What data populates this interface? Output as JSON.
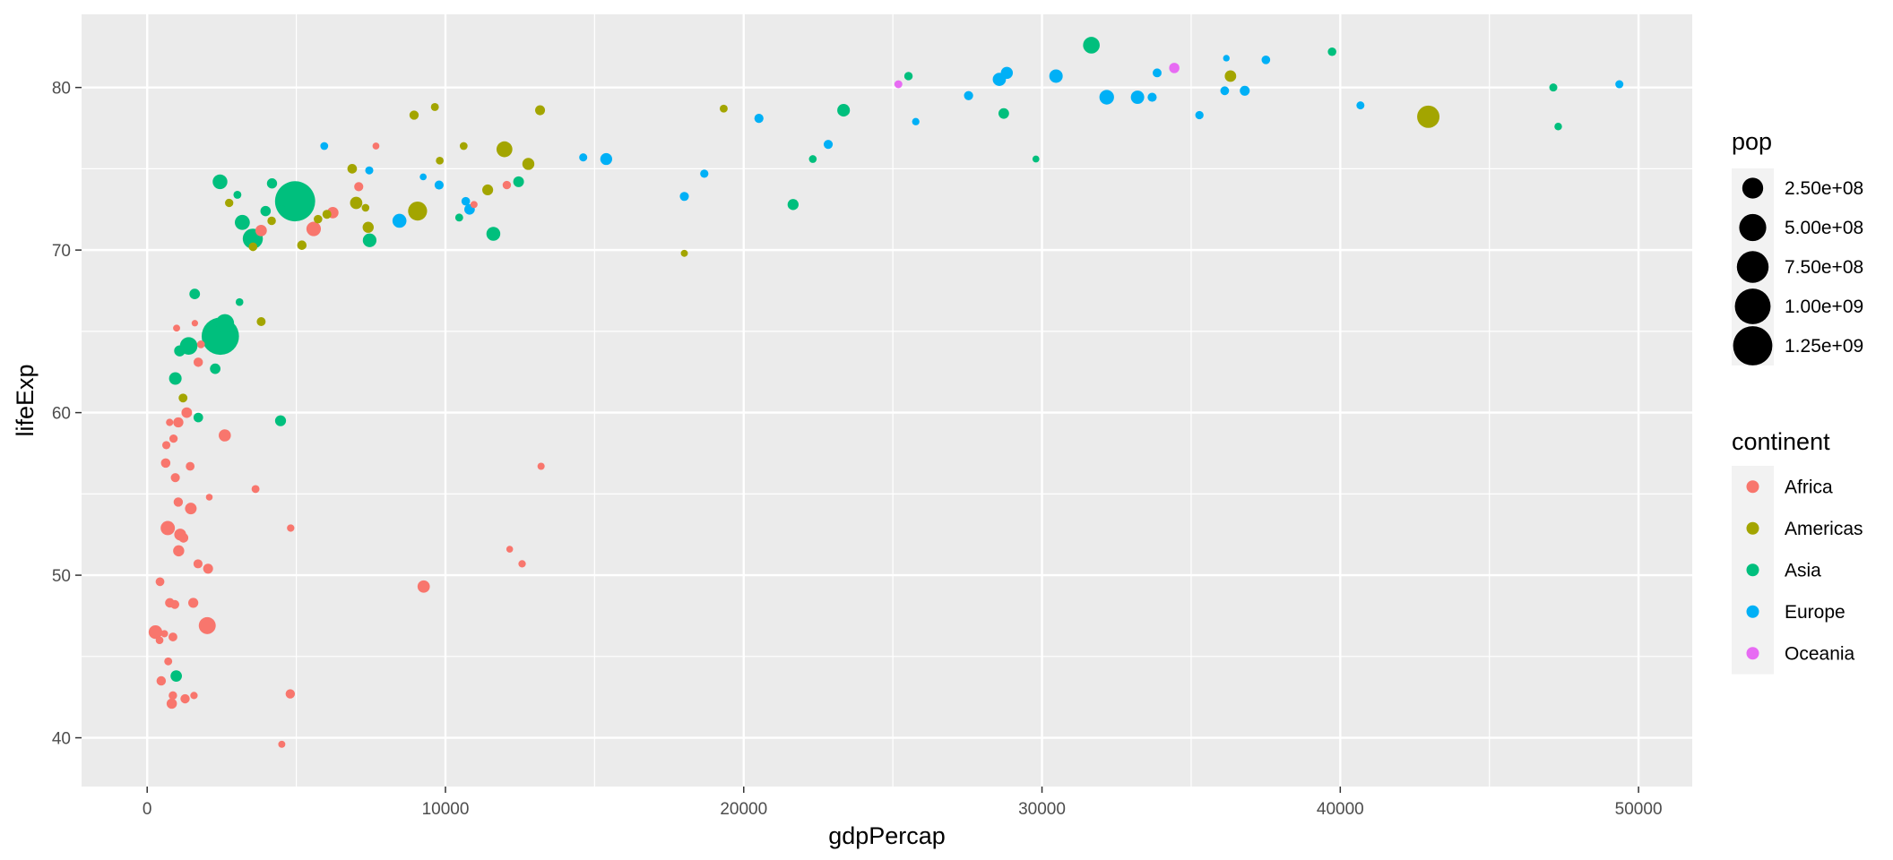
{
  "chart_data": {
    "type": "scatter",
    "xlabel": "gdpPercap",
    "ylabel": "lifeExp",
    "xlim": [
      -2200,
      51800
    ],
    "ylim": [
      37,
      84.5
    ],
    "x_ticks": [
      0,
      10000,
      20000,
      30000,
      40000,
      50000
    ],
    "x_tick_labels": [
      "0",
      "10000",
      "20000",
      "30000",
      "40000",
      "50000"
    ],
    "y_ticks": [
      40,
      50,
      60,
      70,
      80
    ],
    "y_tick_labels": [
      "40",
      "50",
      "60",
      "70",
      "80"
    ],
    "grid": true,
    "legend_position": "right",
    "size_legend": {
      "title": "pop",
      "entries": [
        {
          "label": "2.50e+08",
          "value": 250000000
        },
        {
          "label": "5.00e+08",
          "value": 500000000
        },
        {
          "label": "7.50e+08",
          "value": 750000000
        },
        {
          "label": "1.00e+09",
          "value": 1000000000
        },
        {
          "label": "1.25e+09",
          "value": 1250000000
        }
      ]
    },
    "color_legend": {
      "title": "continent",
      "entries": [
        {
          "label": "Africa",
          "color": "#F8766D"
        },
        {
          "label": "Americas",
          "color": "#A3A500"
        },
        {
          "label": "Asia",
          "color": "#00BF7D"
        },
        {
          "label": "Europe",
          "color": "#00B0F6"
        },
        {
          "label": "Oceania",
          "color": "#E76BF3"
        }
      ]
    },
    "series": [
      {
        "name": "Africa",
        "points": [
          [
            6223,
            72.3,
            33000000
          ],
          [
            4797,
            42.7,
            12000000
          ],
          [
            1441,
            56.7,
            8000000
          ],
          [
            12570,
            50.7,
            2000000
          ],
          [
            1217,
            52.3,
            14000000
          ],
          [
            430,
            49.6,
            8000000
          ],
          [
            2042,
            50.4,
            17000000
          ],
          [
            706,
            44.7,
            4000000
          ],
          [
            1704,
            50.7,
            10000000
          ],
          [
            986,
            65.2,
            1000000
          ],
          [
            278,
            46.5,
            65000000
          ],
          [
            3633,
            55.3,
            4000000
          ],
          [
            1545,
            48.3,
            18000000
          ],
          [
            2082,
            54.8,
            500000
          ],
          [
            5581,
            71.3,
            80000000
          ],
          [
            12154,
            51.6,
            550000
          ],
          [
            641,
            58.0,
            4900000
          ],
          [
            690,
            52.9,
            76000000
          ],
          [
            13206,
            56.7,
            1400000
          ],
          [
            753,
            59.4,
            1700000
          ],
          [
            1327,
            60.0,
            23000000
          ],
          [
            943,
            56.0,
            9900000
          ],
          [
            579,
            46.4,
            1500000
          ],
          [
            1463,
            54.1,
            35000000
          ],
          [
            1569,
            42.6,
            2000000
          ],
          [
            415,
            46.0,
            3200000
          ],
          [
            12057,
            74.0,
            6000000
          ],
          [
            1044,
            59.4,
            19000000
          ],
          [
            759,
            48.3,
            13000000
          ],
          [
            1042,
            54.5,
            12000000
          ],
          [
            1803,
            64.2,
            3300000
          ],
          [
            10957,
            72.8,
            1250000
          ],
          [
            3820,
            71.2,
            33000000
          ],
          [
            824,
            42.1,
            20000000
          ],
          [
            4811,
            52.9,
            2000000
          ],
          [
            620,
            56.9,
            12900000
          ],
          [
            2014,
            46.9,
            135000000
          ],
          [
            7670,
            76.4,
            800000
          ],
          [
            863,
            46.2,
            8900000
          ],
          [
            1598,
            65.5,
            200000
          ],
          [
            1712,
            63.1,
            12000000
          ],
          [
            862,
            42.6,
            6100000
          ],
          [
            926,
            48.2,
            9100000
          ],
          [
            9270,
            49.3,
            44000000
          ],
          [
            2602,
            58.6,
            42000000
          ],
          [
            4513,
            39.6,
            1100000
          ],
          [
            1107,
            52.5,
            38000000
          ],
          [
            883,
            58.4,
            5700000
          ],
          [
            7093,
            73.9,
            10300000
          ],
          [
            1056,
            51.5,
            29000000
          ],
          [
            1271,
            42.4,
            11700000
          ],
          [
            470,
            43.5,
            12300000
          ]
        ]
      },
      {
        "name": "Americas",
        "points": [
          [
            12779,
            75.3,
            40000000
          ],
          [
            3822,
            65.6,
            9100000
          ],
          [
            9066,
            72.4,
            190000000
          ],
          [
            36319,
            80.7,
            33000000
          ],
          [
            13172,
            78.6,
            16300000
          ],
          [
            7007,
            72.9,
            44000000
          ],
          [
            9645,
            78.8,
            4100000
          ],
          [
            8948,
            78.3,
            11400000
          ],
          [
            6025,
            72.2,
            9300000
          ],
          [
            6873,
            75.0,
            13800000
          ],
          [
            5728,
            71.9,
            6900000
          ],
          [
            5186,
            70.3,
            12600000
          ],
          [
            1202,
            60.9,
            8500000
          ],
          [
            3548,
            70.2,
            7500000
          ],
          [
            7321,
            72.6,
            2800000
          ],
          [
            11978,
            76.2,
            108700000
          ],
          [
            2749,
            72.9,
            5700000
          ],
          [
            9809,
            75.5,
            3200000
          ],
          [
            4173,
            71.8,
            6700000
          ],
          [
            7409,
            71.4,
            28700000
          ],
          [
            19329,
            78.7,
            3900000
          ],
          [
            18009,
            69.8,
            1100000
          ],
          [
            42952,
            78.2,
            301000000
          ],
          [
            10611,
            76.4,
            3400000
          ],
          [
            11416,
            73.7,
            26000000
          ]
        ]
      },
      {
        "name": "Asia",
        "points": [
          [
            29796,
            75.6,
            700000
          ],
          [
            1391,
            64.1,
            150000000
          ],
          [
            1714,
            59.7,
            14000000
          ],
          [
            4959,
            73.0,
            1319000000
          ],
          [
            39725,
            82.2,
            6900000
          ],
          [
            2452,
            64.7,
            1110000000
          ],
          [
            3541,
            70.7,
            224000000
          ],
          [
            11606,
            71.0,
            69000000
          ],
          [
            4471,
            59.5,
            27000000
          ],
          [
            25523,
            80.7,
            6400000
          ],
          [
            31656,
            82.6,
            127000000
          ],
          [
            4519,
            72.5,
            6000000
          ],
          [
            1593,
            67.3,
            23000000
          ],
          [
            23348,
            78.6,
            49000000
          ],
          [
            47307,
            77.6,
            2500000
          ],
          [
            10461,
            72.0,
            3900000
          ],
          [
            12452,
            74.2,
            24800000
          ],
          [
            3096,
            66.8,
            2900000
          ],
          [
            944,
            62.1,
            47800000
          ],
          [
            1091,
            63.8,
            28900000
          ],
          [
            22316,
            75.6,
            3200000
          ],
          [
            2606,
            65.5,
            169000000
          ],
          [
            3190,
            71.7,
            91000000
          ],
          [
            21655,
            72.8,
            27600000
          ],
          [
            47143,
            80.0,
            4500000
          ],
          [
            3970,
            72.4,
            20400000
          ],
          [
            4185,
            74.1,
            19300000
          ],
          [
            28718,
            78.4,
            23200000
          ],
          [
            7458,
            70.6,
            65000000
          ],
          [
            2442,
            74.2,
            85000000
          ],
          [
            3025,
            73.4,
            4000000
          ],
          [
            2281,
            62.7,
            22200000
          ],
          [
            974,
            43.8,
            31900000
          ]
        ]
      },
      {
        "name": "Europe",
        "points": [
          [
            5937,
            76.4,
            3600000
          ],
          [
            36126,
            79.8,
            8200000
          ],
          [
            33693,
            79.4,
            10400000
          ],
          [
            7446,
            74.9,
            4500000
          ],
          [
            10681,
            73.0,
            7300000
          ],
          [
            14619,
            75.7,
            4500000
          ],
          [
            22833,
            76.5,
            10200000
          ],
          [
            35278,
            78.3,
            5500000
          ],
          [
            33207,
            79.3,
            5200000
          ],
          [
            30470,
            80.7,
            61000000
          ],
          [
            32170,
            79.4,
            82400000
          ],
          [
            27538,
            79.5,
            10700000
          ],
          [
            18009,
            73.3,
            10000000
          ],
          [
            36181,
            81.8,
            300000
          ],
          [
            40676,
            78.9,
            4100000
          ],
          [
            28570,
            80.5,
            58100000
          ],
          [
            9254,
            74.5,
            700000
          ],
          [
            36798,
            79.8,
            16600000
          ],
          [
            49357,
            80.2,
            4600000
          ],
          [
            15390,
            75.6,
            38500000
          ],
          [
            20510,
            78.1,
            10600000
          ],
          [
            10808,
            72.5,
            22300000
          ],
          [
            9787,
            74.0,
            10200000
          ],
          [
            18678,
            74.7,
            5400000
          ],
          [
            25768,
            77.9,
            2000000
          ],
          [
            28821,
            80.9,
            40400000
          ],
          [
            33860,
            80.9,
            9000000
          ],
          [
            37506,
            81.7,
            7500000
          ],
          [
            8458,
            71.8,
            71200000
          ],
          [
            33203,
            79.4,
            60800000
          ]
        ]
      },
      {
        "name": "Oceania",
        "points": [
          [
            34435,
            81.2,
            20400000
          ],
          [
            25185,
            80.2,
            4100000
          ]
        ]
      }
    ]
  }
}
